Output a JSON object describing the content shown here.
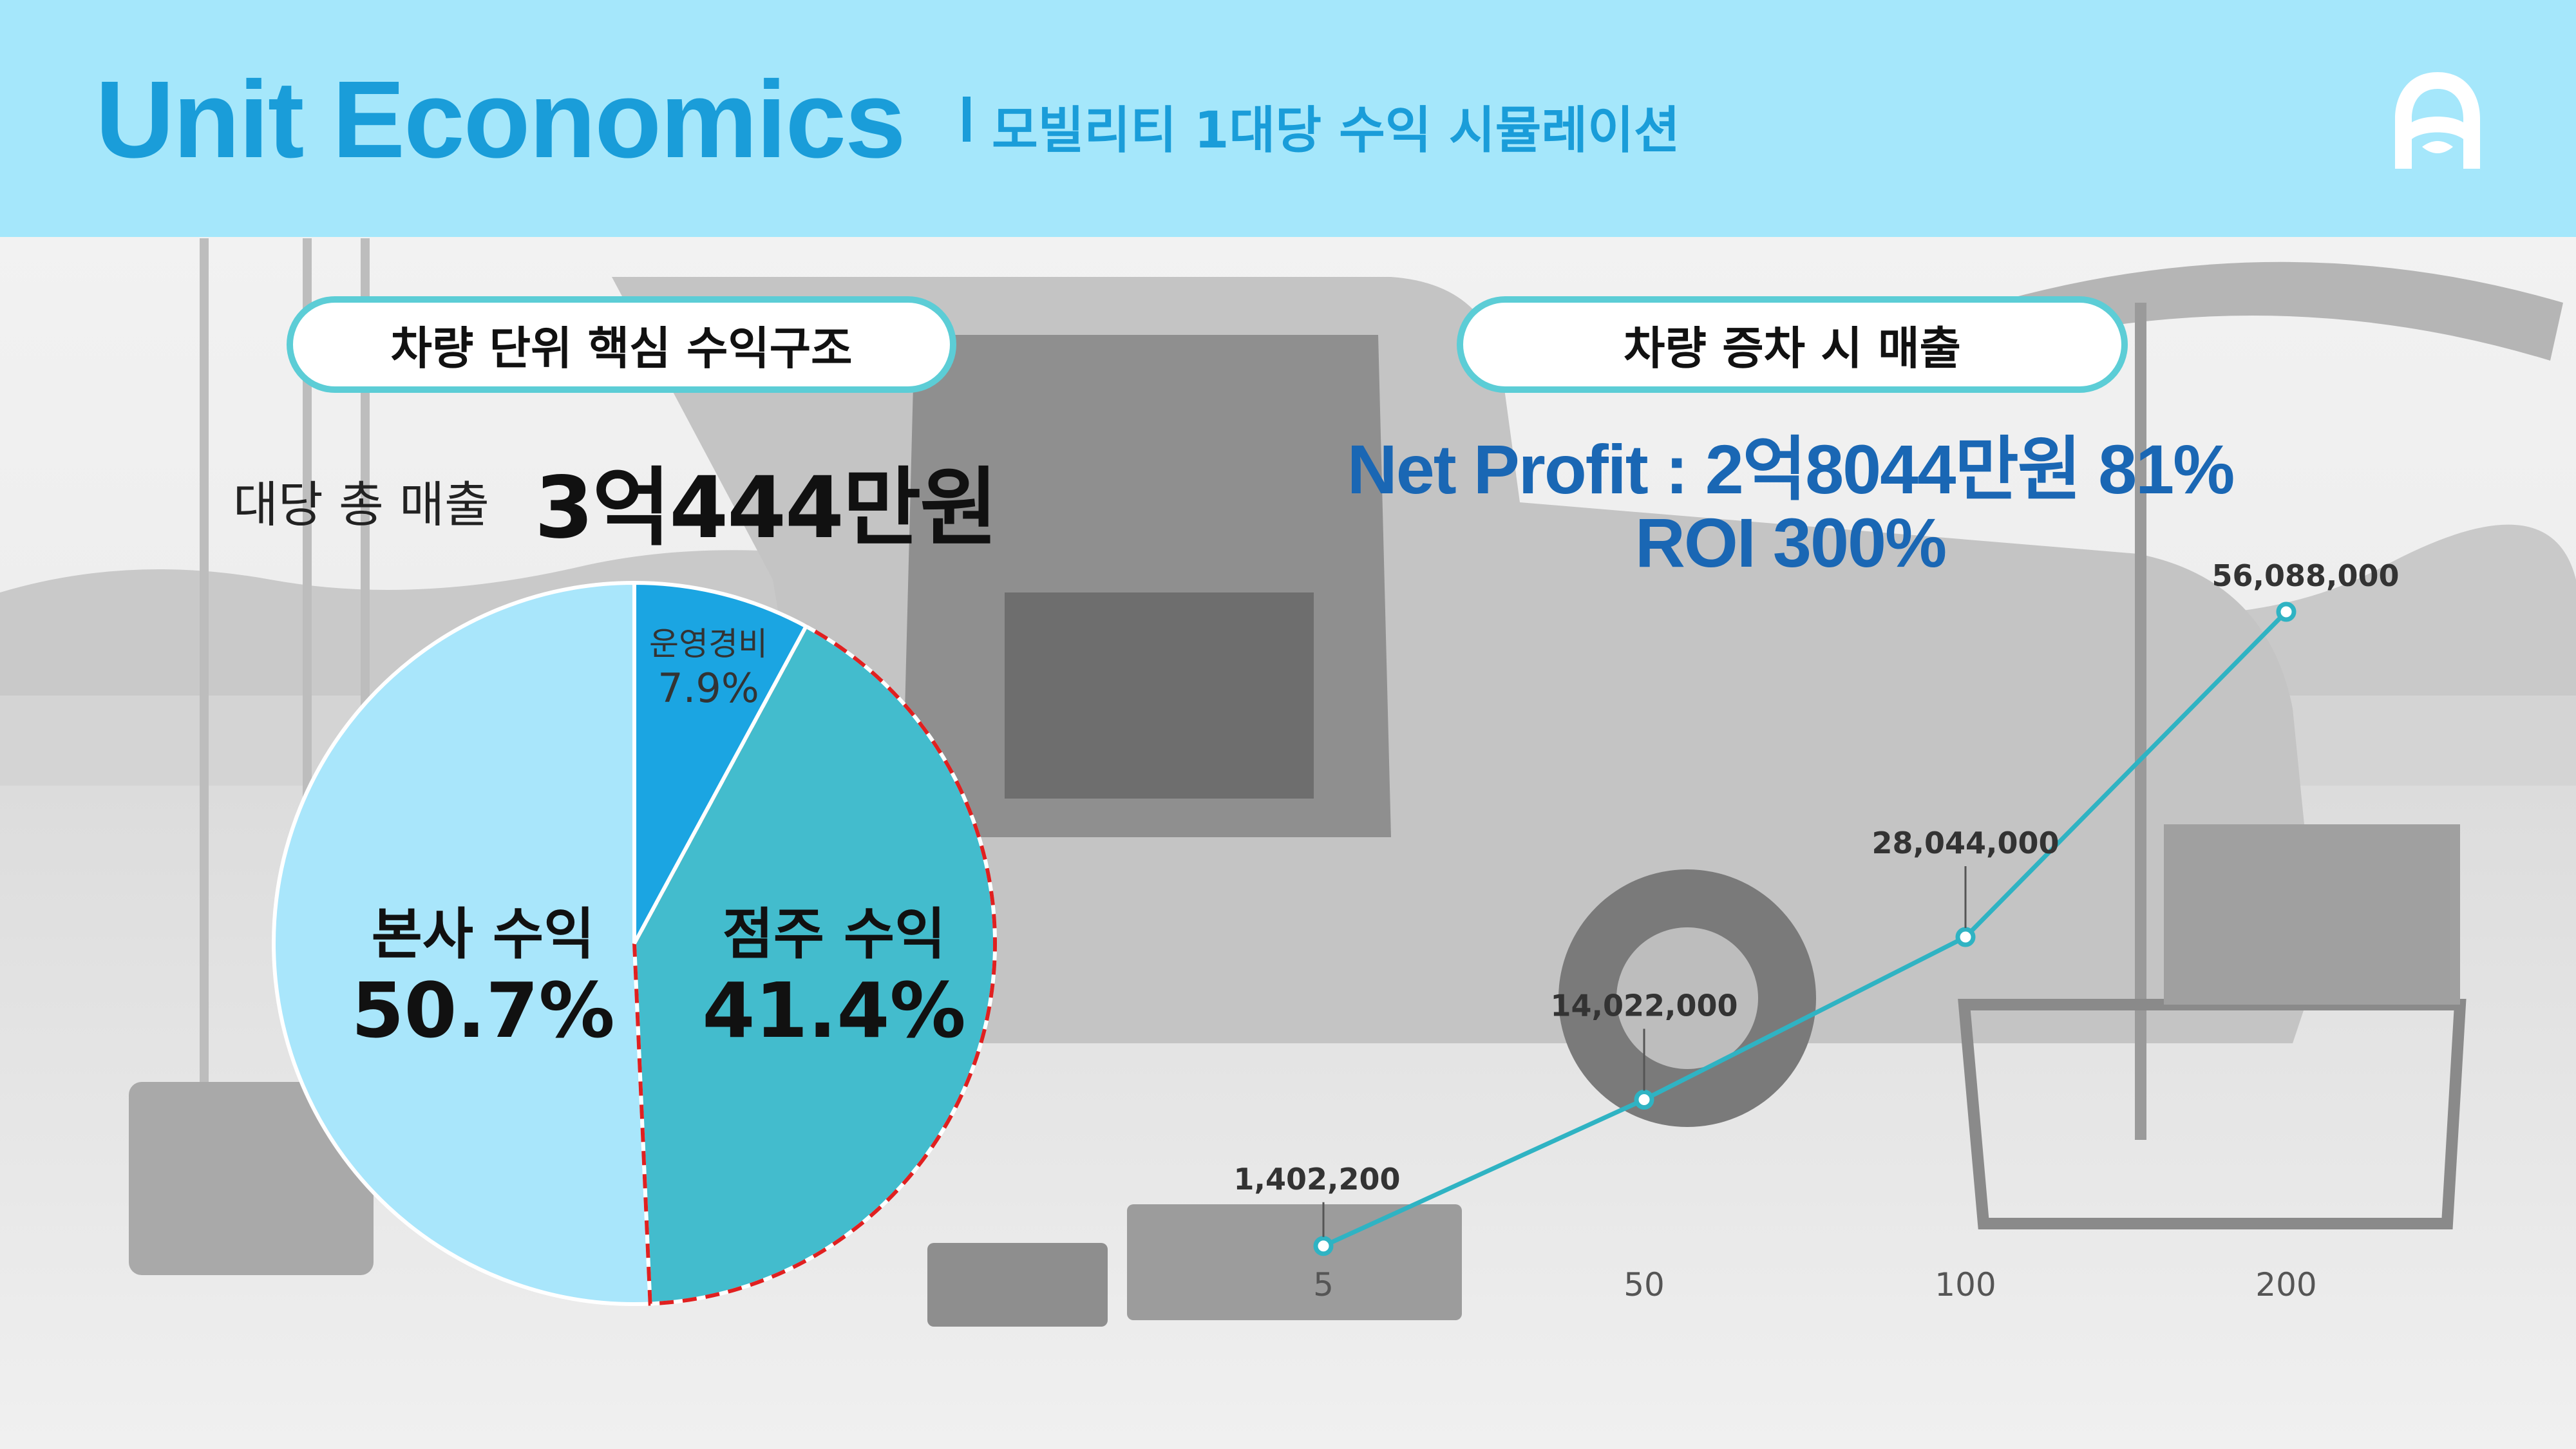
{
  "header": {
    "title": "Unit Economics",
    "subtitle": "모빌리티 1대당 수익 시뮬레이션"
  },
  "left_panel": {
    "pill_label": "차량 단위 핵심 수익구조",
    "revenue_label": "대당 총 매출",
    "revenue_value": "3억444만원"
  },
  "right_panel": {
    "pill_label": "차량 증차 시  매출",
    "net_profit": "Net Profit : 2억8044만원 81%",
    "roi": "ROI 300%"
  },
  "colors": {
    "header_bg": "#a5e7fb",
    "title": "#1a9dd9",
    "accent_blue": "#1a67b4",
    "pill_border": "#5ccdd6",
    "pie_hq": "#a9e6fb",
    "pie_owner": "#43bccd",
    "pie_ops": "#1ba5e2",
    "line": "#2fb3c3",
    "dash": "#e02020"
  },
  "chart_data": [
    {
      "type": "pie",
      "slices": [
        {
          "label": "본사 수익",
          "value": 50.7,
          "display": "50.7%"
        },
        {
          "label": "점주 수익",
          "value": 41.4,
          "display": "41.4%"
        },
        {
          "label": "운영경비",
          "value": 7.9,
          "display": "7.9%"
        }
      ]
    },
    {
      "type": "line",
      "categories": [
        "5",
        "50",
        "100",
        "200"
      ],
      "series": [
        {
          "values": [
            1402200,
            14022000,
            28044000,
            56088000
          ]
        }
      ],
      "data_labels": [
        "1,402,200",
        "14,022,000",
        "28,044,000",
        "56,088,000"
      ],
      "ylim": [
        0,
        56088000
      ],
      "grid": false
    }
  ]
}
